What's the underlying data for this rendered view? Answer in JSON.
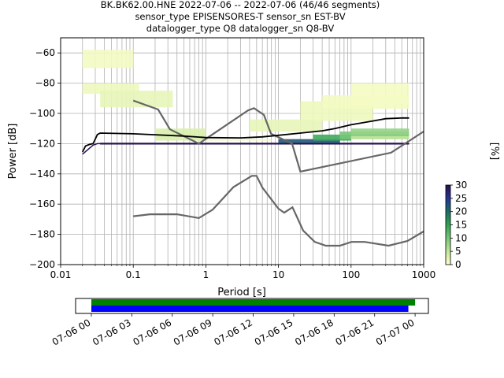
{
  "title_lines": [
    "BK.BK62.00.HNE   2022-07-06 -- 2022-07-06  (46/46 segments)",
    "sensor_type EPISENSORES-T sensor_sn EST-BV",
    "datalogger_type Q8 datalogger_sn Q8-BV"
  ],
  "chart_data": [
    {
      "type": "heatmap",
      "xlabel": "Period [s]",
      "ylabel": "Power [dB]",
      "xscale": "log",
      "xlim": [
        0.01,
        1000
      ],
      "ylim": [
        -200,
        -50
      ],
      "xticks": [
        {
          "v": 0.01,
          "label": "0.01"
        },
        {
          "v": 0.1,
          "label": "0.1"
        },
        {
          "v": 1,
          "label": "1"
        },
        {
          "v": 10,
          "label": "10"
        },
        {
          "v": 100,
          "label": "100"
        },
        {
          "v": 1000,
          "label": "1000"
        }
      ],
      "yticks": [
        {
          "v": -60,
          "label": "−60"
        },
        {
          "v": -80,
          "label": "−80"
        },
        {
          "v": -100,
          "label": "−100"
        },
        {
          "v": -120,
          "label": "−120"
        },
        {
          "v": -140,
          "label": "−140"
        },
        {
          "v": -160,
          "label": "−160"
        },
        {
          "v": -180,
          "label": "−180"
        },
        {
          "v": -200,
          "label": "−200"
        }
      ],
      "grid": true,
      "colorbar": {
        "label": "[%]",
        "range": [
          0,
          30
        ],
        "ticks": [
          {
            "v": 0,
            "label": "0"
          },
          {
            "v": 5,
            "label": "5"
          },
          {
            "v": 10,
            "label": "10"
          },
          {
            "v": 15,
            "label": "15"
          },
          {
            "v": 20,
            "label": "20"
          },
          {
            "v": 25,
            "label": "25"
          },
          {
            "v": 30,
            "label": "30"
          }
        ],
        "colors": [
          "#ffffcc",
          "#c2e699",
          "#78c679",
          "#31a354",
          "#1d6d64",
          "#253494",
          "#2b0f4f"
        ]
      },
      "noise_model_high": [
        [
          0.1,
          -91.5
        ],
        [
          0.22,
          -97.4
        ],
        [
          0.32,
          -110.5
        ],
        [
          0.8,
          -120
        ],
        [
          3.8,
          -98
        ],
        [
          4.6,
          -96.5
        ],
        [
          6.3,
          -101
        ],
        [
          7.9,
          -113.5
        ],
        [
          15.4,
          -120
        ],
        [
          20,
          -138.5
        ],
        [
          354.8,
          -126
        ],
        [
          1000,
          -112
        ]
      ],
      "noise_model_low": [
        [
          0.1,
          -168
        ],
        [
          0.17,
          -166.7
        ],
        [
          0.4,
          -166.7
        ],
        [
          0.8,
          -169.2
        ],
        [
          1.24,
          -163.7
        ],
        [
          2.4,
          -148.7
        ],
        [
          4.3,
          -141.3
        ],
        [
          5,
          -141.3
        ],
        [
          6,
          -149
        ],
        [
          10,
          -163
        ],
        [
          12,
          -165.7
        ],
        [
          15.6,
          -162.1
        ],
        [
          21.9,
          -177.5
        ],
        [
          31.6,
          -185
        ],
        [
          45,
          -187.5
        ],
        [
          70,
          -187.5
        ],
        [
          101,
          -185
        ],
        [
          154.5,
          -185
        ],
        [
          328.6,
          -187.5
        ],
        [
          600,
          -184.4
        ],
        [
          1000,
          -178
        ]
      ],
      "mode_line": [
        [
          0.02,
          -125.5
        ],
        [
          0.022,
          -121.5
        ],
        [
          0.025,
          -120.5
        ],
        [
          0.028,
          -120
        ],
        [
          0.03,
          -117
        ],
        [
          0.032,
          -114
        ],
        [
          0.035,
          -113
        ],
        [
          0.1,
          -113.5
        ],
        [
          0.5,
          -115
        ],
        [
          1,
          -116
        ],
        [
          3,
          -116.2
        ],
        [
          6,
          -115.5
        ],
        [
          10,
          -114.5
        ],
        [
          20,
          -113
        ],
        [
          40,
          -111.5
        ],
        [
          60,
          -110
        ],
        [
          100,
          -107.5
        ],
        [
          200,
          -105
        ],
        [
          300,
          -103.5
        ],
        [
          500,
          -103
        ],
        [
          630,
          -103
        ]
      ],
      "min_line": [
        [
          0.02,
          -127
        ],
        [
          0.028,
          -121
        ],
        [
          0.032,
          -120
        ],
        [
          630,
          -120
        ]
      ],
      "histogram_bands": [
        {
          "x": [
            0.02,
            0.12
          ],
          "y": [
            -87,
            -80
          ],
          "pct": 1.5
        },
        {
          "x": [
            0.02,
            0.1
          ],
          "y": [
            -70,
            -58
          ],
          "pct": 1
        },
        {
          "x": [
            0.035,
            0.35
          ],
          "y": [
            -96,
            -85
          ],
          "pct": 2
        },
        {
          "x": [
            0.2,
            1
          ],
          "y": [
            -118,
            -110
          ],
          "pct": 3
        },
        {
          "x": [
            1,
            8
          ],
          "y": [
            -118,
            -117
          ],
          "pct": 1.5
        },
        {
          "x": [
            4,
            40
          ],
          "y": [
            -112,
            -104
          ],
          "pct": 2
        },
        {
          "x": [
            20,
            200
          ],
          "y": [
            -105,
            -92
          ],
          "pct": 1.5
        },
        {
          "x": [
            40,
            630
          ],
          "y": [
            -97,
            -88
          ],
          "pct": 1
        },
        {
          "x": [
            100,
            630
          ],
          "y": [
            -94,
            -80
          ],
          "pct": 0.8
        },
        {
          "x": [
            0.035,
            630
          ],
          "y": [
            -120.6,
            -119.4
          ],
          "pct": 30
        },
        {
          "x": [
            10,
            70
          ],
          "y": [
            -120,
            -117
          ],
          "pct": 22
        },
        {
          "x": [
            30,
            100
          ],
          "y": [
            -118,
            -114
          ],
          "pct": 14
        },
        {
          "x": [
            70,
            630
          ],
          "y": [
            -117,
            -112
          ],
          "pct": 10
        },
        {
          "x": [
            100,
            630
          ],
          "y": [
            -114,
            -110
          ],
          "pct": 8
        },
        {
          "x": [
            100,
            630
          ],
          "y": [
            -117,
            -115
          ],
          "pct": 5
        }
      ]
    },
    {
      "type": "bar",
      "title": "",
      "xlabel": "",
      "ylabel": "",
      "time_start": "2022-07-06 00:00",
      "time_end": "2022-07-07 01:30",
      "tick_hours": [
        0,
        3,
        6,
        9,
        12,
        15,
        18,
        21,
        24
      ],
      "tick_labels": [
        "07-06 00",
        "07-06 03",
        "07-06 06",
        "07-06 09",
        "07-06 12",
        "07-06 15",
        "07-06 18",
        "07-06 21",
        "07-07 00"
      ],
      "series": [
        {
          "color": "#008000",
          "start_hour": 0.0,
          "end_hour": 24.0
        },
        {
          "color": "#0000ff",
          "start_hour": 0.0,
          "end_hour": 23.5
        }
      ]
    }
  ]
}
